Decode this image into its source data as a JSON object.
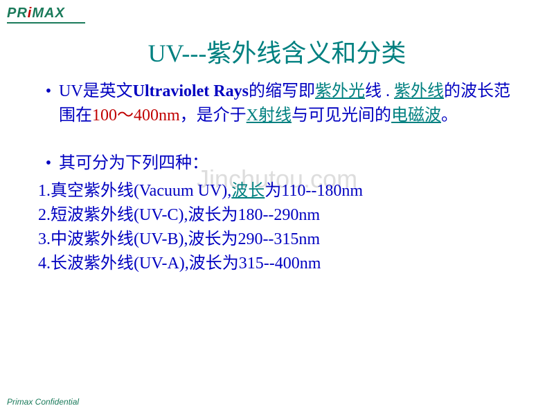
{
  "logo": {
    "text": "PRiMAX"
  },
  "title": "UV---紫外线含义和分类",
  "watermark": "Jinchutou.com",
  "para1": {
    "p1a": "UV是英文",
    "p1b": "Ultraviolet Rays",
    "p1c": "的缩写即",
    "link1": "紫外光",
    "p1d": "线 . ",
    "link2": "紫外线",
    "p1e": "的波长范围在",
    "red1": "100～400nm",
    "p1f": "，是介于",
    "link3": "X射线",
    "p1g": "与可见光间的",
    "link4": "电磁波",
    "p1h": "。"
  },
  "para2": "其可分为下列四种：",
  "items": [
    {
      "pre": "1.真空紫外线(Vacuum UV),",
      "link": "波长",
      "post": "为110--180nm"
    },
    {
      "pre": "2.短波紫外线(UV-C),波长为180--290nm",
      "link": "",
      "post": ""
    },
    {
      "pre": "3.中波紫外线(UV-B),波长为290--315nm",
      "link": "",
      "post": ""
    },
    {
      "pre": "4.长波紫外线(UV-A),波长为315--400nm",
      "link": "",
      "post": ""
    }
  ],
  "footer": "Primax Confidential",
  "colors": {
    "title": "#008080",
    "body": "#0000c0",
    "link": "#008080",
    "red": "#c00000",
    "logo": "#1a7a5a",
    "watermark": "#dddddd",
    "background": "#ffffff"
  },
  "fontsizes": {
    "title": 36,
    "body": 24,
    "footer": 12,
    "watermark": 36,
    "logo": 20
  }
}
